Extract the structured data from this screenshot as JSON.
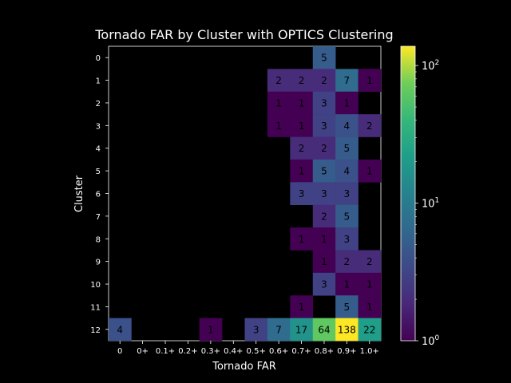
{
  "chart_data": {
    "type": "heatmap",
    "title": "Tornado FAR by Cluster with OPTICS Clustering",
    "xlabel": "Tornado FAR",
    "ylabel": "Cluster",
    "x_categories": [
      "0",
      "0+",
      "0.1+",
      "0.2+",
      "0.3+",
      "0.4+",
      "0.5+",
      "0.6+",
      "0.7+",
      "0.8+",
      "0.9+",
      "1.0+"
    ],
    "x_tick_labels": [
      "0",
      "0+",
      "0.1+",
      "0.2+",
      "0.3+",
      "0.4+",
      "0.5+",
      "0.6+",
      "0.7+",
      "0.8+",
      "0.9+",
      "1.0+"
    ],
    "y_categories": [
      "0",
      "1",
      "2",
      "3",
      "4",
      "5",
      "6",
      "7",
      "8",
      "9",
      "10",
      "11",
      "12"
    ],
    "values": [
      [
        null,
        null,
        null,
        null,
        null,
        null,
        null,
        null,
        null,
        5,
        null,
        null
      ],
      [
        null,
        null,
        null,
        null,
        null,
        null,
        null,
        2,
        2,
        2,
        7,
        1
      ],
      [
        null,
        null,
        null,
        null,
        null,
        null,
        null,
        1,
        1,
        3,
        1,
        null
      ],
      [
        null,
        null,
        null,
        null,
        null,
        null,
        null,
        1,
        1,
        3,
        4,
        2
      ],
      [
        null,
        null,
        null,
        null,
        null,
        null,
        null,
        null,
        2,
        2,
        5,
        null
      ],
      [
        null,
        null,
        null,
        null,
        null,
        null,
        null,
        null,
        1,
        5,
        4,
        1
      ],
      [
        null,
        null,
        null,
        null,
        null,
        null,
        null,
        null,
        3,
        3,
        3,
        null
      ],
      [
        null,
        null,
        null,
        null,
        null,
        null,
        null,
        null,
        null,
        2,
        5,
        null
      ],
      [
        null,
        null,
        null,
        null,
        null,
        null,
        null,
        null,
        1,
        1,
        3,
        null
      ],
      [
        null,
        null,
        null,
        null,
        null,
        null,
        null,
        null,
        null,
        1,
        2,
        2
      ],
      [
        null,
        null,
        null,
        null,
        null,
        null,
        null,
        null,
        null,
        3,
        1,
        1
      ],
      [
        null,
        null,
        null,
        null,
        null,
        null,
        null,
        null,
        1,
        null,
        5,
        1
      ],
      [
        4,
        null,
        null,
        null,
        1,
        null,
        3,
        7,
        17,
        64,
        138,
        22
      ]
    ],
    "color_scale": "log",
    "colormap": "viridis",
    "vmin": 1,
    "vmax": 138,
    "colorbar_ticks": [
      {
        "value": 1,
        "base": "10",
        "exp": "0"
      },
      {
        "value": 10,
        "base": "10",
        "exp": "1"
      },
      {
        "value": 100,
        "base": "10",
        "exp": "2"
      }
    ],
    "background": "#000000"
  }
}
